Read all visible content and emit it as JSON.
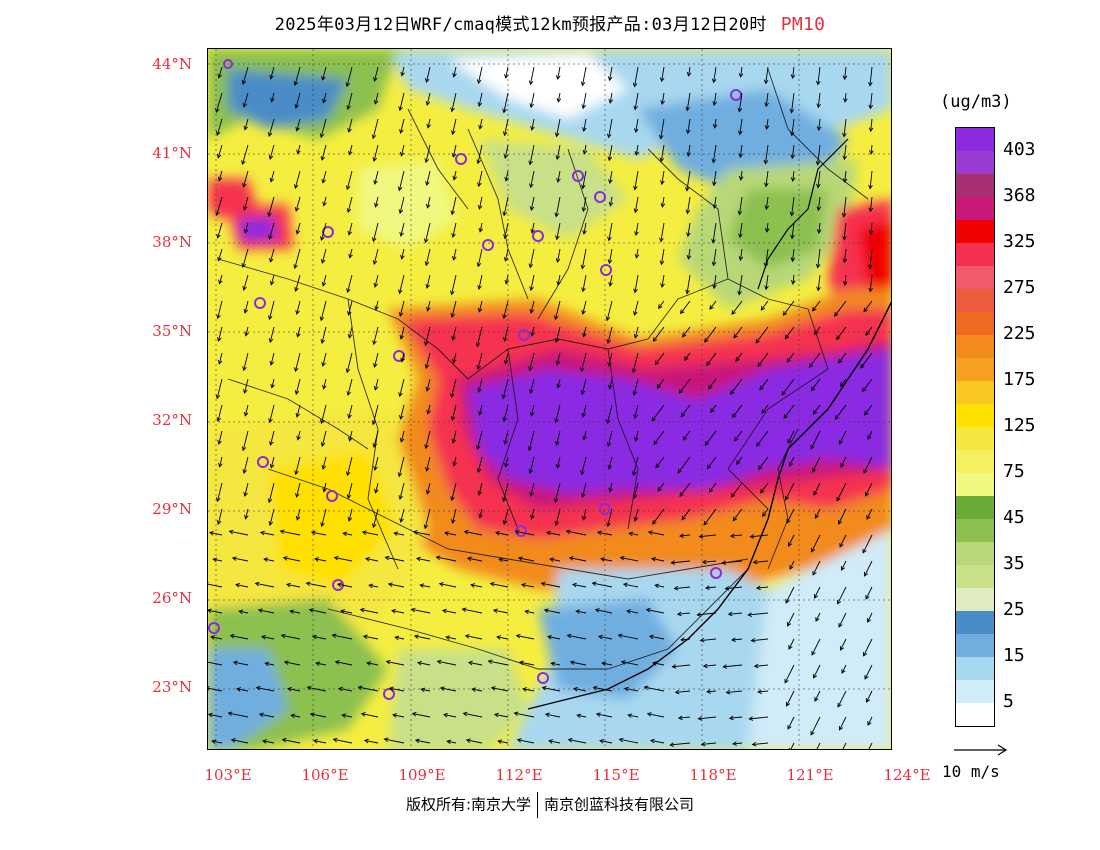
{
  "title": {
    "text": "2025年03月12日WRF/cmaq模式12km预报产品:03月12日20时",
    "pollutant": "PM10"
  },
  "map": {
    "lon_range": [
      103,
      124
    ],
    "lat_range": [
      21,
      44.5
    ],
    "lat_ticks": [
      "44°N",
      "41°N",
      "38°N",
      "35°N",
      "32°N",
      "29°N",
      "26°N",
      "23°N"
    ],
    "lat_values": [
      44,
      41,
      38,
      35,
      32,
      29,
      26,
      23
    ],
    "lon_ticks": [
      "103°E",
      "106°E",
      "109°E",
      "112°E",
      "115°E",
      "118°E",
      "121°E",
      "124°E"
    ],
    "lon_values": [
      103,
      106,
      109,
      112,
      115,
      118,
      121,
      124
    ],
    "high_pollution_band": "Yangtze River basin, PM10 > 325 ug/m3",
    "station_marker": "purple-circle"
  },
  "legend": {
    "unit": "(ug/m3)",
    "levels": [
      {
        "value": "403",
        "color": "#8a2be2"
      },
      {
        "value": "",
        "color": "#9a3cd0"
      },
      {
        "value": "368",
        "color": "#a83070"
      },
      {
        "value": "",
        "color": "#c8187a"
      },
      {
        "value": "325",
        "color": "#f00000"
      },
      {
        "value": "",
        "color": "#f53050"
      },
      {
        "value": "275",
        "color": "#f25a6a"
      },
      {
        "value": "",
        "color": "#ee5c40"
      },
      {
        "value": "225",
        "color": "#ee6a22"
      },
      {
        "value": "",
        "color": "#f28a1c"
      },
      {
        "value": "175",
        "color": "#f5a020"
      },
      {
        "value": "",
        "color": "#f8c820"
      },
      {
        "value": "125",
        "color": "#ffe000"
      },
      {
        "value": "",
        "color": "#f5e640"
      },
      {
        "value": "75",
        "color": "#f5f060"
      },
      {
        "value": "",
        "color": "#f0f880"
      },
      {
        "value": "45",
        "color": "#6aaa38"
      },
      {
        "value": "",
        "color": "#8cc050"
      },
      {
        "value": "35",
        "color": "#b8d878"
      },
      {
        "value": "",
        "color": "#c8e088"
      },
      {
        "value": "25",
        "color": "#e0ecc0"
      },
      {
        "value": "",
        "color": "#4a8cc8"
      },
      {
        "value": "15",
        "color": "#70aee0"
      },
      {
        "value": "",
        "color": "#a8d8f0"
      },
      {
        "value": "5",
        "color": "#d0ecf8"
      },
      {
        "value": "",
        "color": "#ffffff"
      }
    ]
  },
  "wind_reference": {
    "label": "10 m/s"
  },
  "footer": {
    "copyright_left": "版权所有:南京大学",
    "copyright_right": "南京创蓝科技有限公司"
  }
}
